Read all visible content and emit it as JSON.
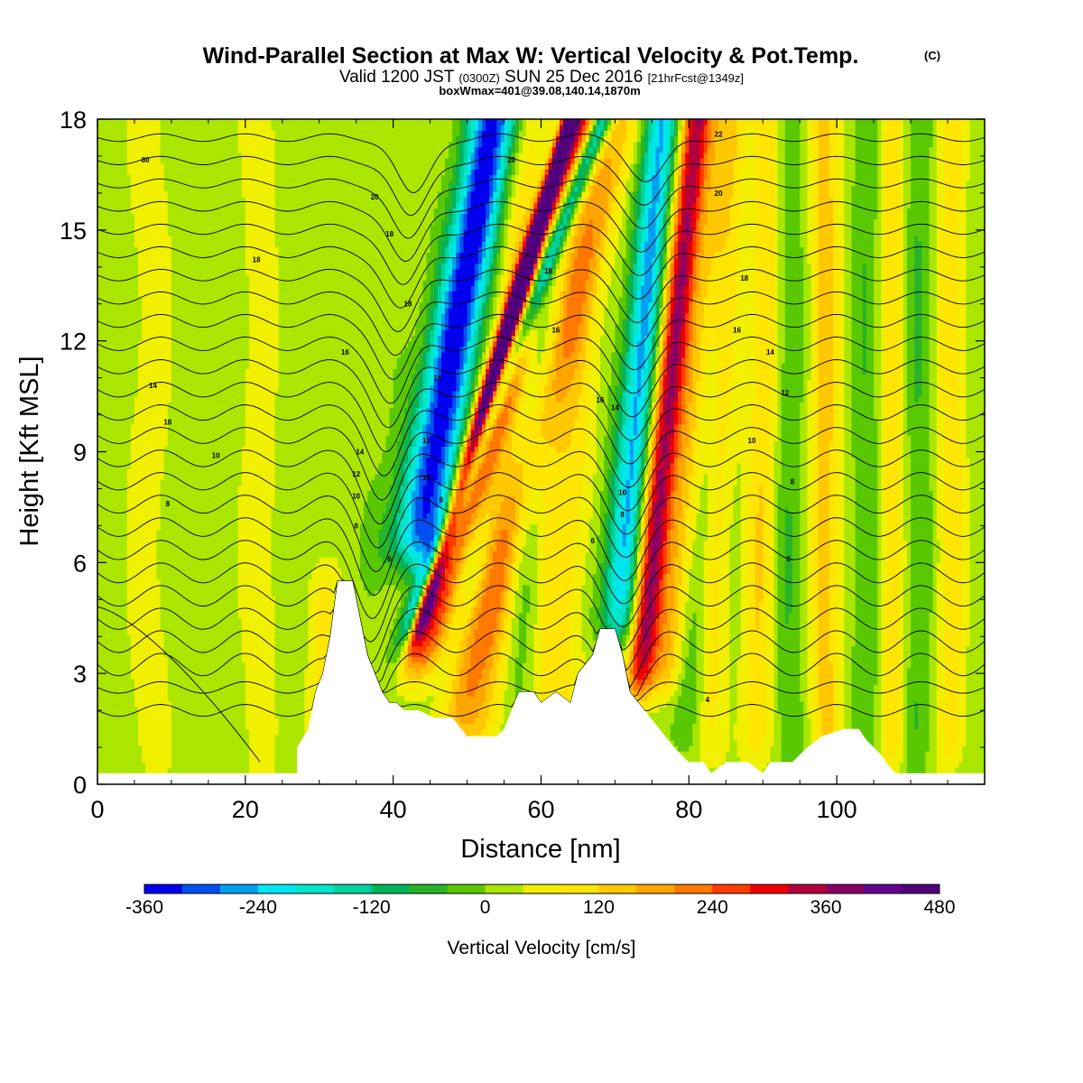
{
  "chart_data": {
    "type": "heatmap",
    "title": "Wind-Parallel Section at Max W: Vertical Velocity & Pot.Temp.",
    "title_mark": "(C)",
    "subtitle_valid": "Valid 1200 JST",
    "subtitle_utc": "(0300Z)",
    "subtitle_date": "SUN 25 Dec 2016",
    "subtitle_fcst": "[21hrFcst@1349z]",
    "subtitle_box": "boxWmax=401@39.08,140.14,1870m",
    "xlabel": "Distance [nm]",
    "ylabel": "Height [Kft MSL]",
    "xlim": [
      0,
      120
    ],
    "ylim": [
      0,
      18
    ],
    "x_ticks": [
      0,
      20,
      40,
      60,
      80,
      100
    ],
    "y_ticks": [
      0,
      3,
      6,
      9,
      12,
      15,
      18
    ],
    "colorbar": {
      "label": "Vertical Velocity [cm/s]",
      "min": -360,
      "max": 480,
      "step": 40,
      "tick_labels": [
        "-360",
        "-240",
        "-120",
        "0",
        "120",
        "240",
        "360",
        "480"
      ],
      "colors": [
        "#0000ee",
        "#0050f0",
        "#00a0f0",
        "#00e6f0",
        "#00e6c8",
        "#00d2a0",
        "#00b45a",
        "#28b428",
        "#5ac800",
        "#aae600",
        "#f0f000",
        "#ffe600",
        "#ffc800",
        "#ffa500",
        "#ff7800",
        "#ff3c00",
        "#f00000",
        "#b4003c",
        "#8c0064",
        "#64008c",
        "#50007a"
      ]
    },
    "terrain": [
      [
        0,
        0.3
      ],
      [
        27,
        0.3
      ],
      [
        27,
        1.0
      ],
      [
        28.5,
        1.5
      ],
      [
        29.5,
        2.5
      ],
      [
        30.5,
        3.0
      ],
      [
        31.5,
        4.0
      ],
      [
        32.5,
        5.5
      ],
      [
        34.5,
        5.5
      ],
      [
        35.5,
        4.5
      ],
      [
        36.5,
        3.5
      ],
      [
        37.5,
        3.0
      ],
      [
        38.5,
        2.5
      ],
      [
        39.5,
        2.2
      ],
      [
        40.5,
        2.2
      ],
      [
        41.5,
        2.0
      ],
      [
        43.5,
        2.0
      ],
      [
        45.5,
        1.8
      ],
      [
        48,
        1.8
      ],
      [
        50,
        1.3
      ],
      [
        54,
        1.3
      ],
      [
        55,
        1.5
      ],
      [
        56,
        2.0
      ],
      [
        57,
        2.5
      ],
      [
        59,
        2.5
      ],
      [
        60,
        2.2
      ],
      [
        62,
        2.5
      ],
      [
        64,
        2.2
      ],
      [
        65,
        3.0
      ],
      [
        67,
        3.5
      ],
      [
        68,
        4.2
      ],
      [
        70,
        4.2
      ],
      [
        71,
        3.5
      ],
      [
        72,
        2.5
      ],
      [
        74,
        2.0
      ],
      [
        76,
        1.5
      ],
      [
        78,
        1.0
      ],
      [
        79,
        0.8
      ],
      [
        80,
        0.6
      ],
      [
        82,
        0.6
      ],
      [
        83,
        0.3
      ],
      [
        85,
        0.6
      ],
      [
        88,
        0.6
      ],
      [
        90,
        0.3
      ],
      [
        91,
        0.6
      ],
      [
        94,
        0.6
      ],
      [
        96,
        1.0
      ],
      [
        98,
        1.3
      ],
      [
        101,
        1.5
      ],
      [
        103,
        1.5
      ],
      [
        104,
        1.2
      ],
      [
        106,
        0.8
      ],
      [
        107,
        0.5
      ],
      [
        108,
        0.3
      ],
      [
        120,
        0.3
      ]
    ],
    "w_features": [
      {
        "x0": 34.0,
        "slope": 1.9,
        "sigma": 1.0,
        "amp": -330,
        "zmin": 4.0
      },
      {
        "x0": 37.0,
        "slope": 1.5,
        "sigma": 0.8,
        "amp": 480,
        "zmin": 4.0
      },
      {
        "x0": 38.8,
        "slope": 1.5,
        "sigma": 1.7,
        "amp": 260,
        "zmin": 3.0
      },
      {
        "x0": 39.0,
        "slope": 0.8,
        "sigma": 2.2,
        "amp": -280,
        "zmin": 6.0
      },
      {
        "x0": 33.0,
        "slope": 1.2,
        "sigma": 2.5,
        "amp": -110,
        "zmin": 6.0
      },
      {
        "x0": 43.0,
        "slope": 1.3,
        "sigma": 2.5,
        "amp": -70,
        "zmin": 5.0
      },
      {
        "x0": 30.5,
        "slope": 0.0,
        "sigma": 1.4,
        "amp": 90,
        "zmin": 0.0,
        "zmax": 6.0
      },
      {
        "x0": 46.0,
        "slope": 1.4,
        "sigma": 2.0,
        "amp": 120,
        "zmin": 1.0
      },
      {
        "x0": 51.5,
        "slope": 0.4,
        "sigma": 2.5,
        "amp": 110,
        "zmin": 1.0
      },
      {
        "x0": 56.0,
        "slope": 0.3,
        "sigma": 1.6,
        "amp": -60,
        "zmin": 1.0
      },
      {
        "x0": 61.0,
        "slope": 0.3,
        "sigma": 2.5,
        "amp": 100,
        "zmin": 1.5
      },
      {
        "x0": 66.0,
        "slope": 0.6,
        "sigma": 2.0,
        "amp": -70,
        "zmin": 4.0
      },
      {
        "x0": 69.0,
        "slope": 0.4,
        "sigma": 1.5,
        "amp": -200,
        "zmin": 4.0
      },
      {
        "x0": 72.0,
        "slope": 0.5,
        "sigma": 1.4,
        "amp": 340,
        "zmin": 2.5
      },
      {
        "x0": 75.5,
        "slope": 0.5,
        "sigma": 1.6,
        "amp": 150,
        "zmin": 2.5
      },
      {
        "x0": 79.0,
        "slope": 0.3,
        "sigma": 1.6,
        "amp": -60,
        "zmin": 1.0
      },
      {
        "x0": 82.5,
        "slope": 0.2,
        "sigma": 1.4,
        "amp": 80,
        "zmin": 0.5
      },
      {
        "x0": 89.0,
        "slope": 0.1,
        "sigma": 1.5,
        "amp": 100,
        "zmin": 0.5
      },
      {
        "x0": 93.5,
        "slope": 0.0,
        "sigma": 1.3,
        "amp": -55,
        "zmin": 0.5
      },
      {
        "x0": 98.5,
        "slope": 0.0,
        "sigma": 1.5,
        "amp": 120,
        "zmin": 0.5
      },
      {
        "x0": 104.0,
        "slope": 0.0,
        "sigma": 1.4,
        "amp": -50,
        "zmin": 0.5
      },
      {
        "x0": 107.5,
        "slope": 0.0,
        "sigma": 1.2,
        "amp": 100,
        "zmin": 0.5
      },
      {
        "x0": 111.0,
        "slope": 0.0,
        "sigma": 1.2,
        "amp": -55,
        "zmin": 0.5
      },
      {
        "x0": 115.5,
        "slope": 0.0,
        "sigma": 1.3,
        "amp": 100,
        "zmin": 0.5
      },
      {
        "x0": 7.0,
        "slope": 0.0,
        "sigma": 2.5,
        "amp": 40,
        "zmin": 0.0
      },
      {
        "x0": 22.0,
        "slope": 0.0,
        "sigma": 2.0,
        "amp": 45,
        "zmin": 0.0
      }
    ],
    "contour_labels": [
      {
        "x": 6.5,
        "y": 16.9,
        "text": "80"
      },
      {
        "x": 21.5,
        "y": 14.2,
        "text": "18"
      },
      {
        "x": 7.5,
        "y": 10.8,
        "text": "14"
      },
      {
        "x": 9.5,
        "y": 9.8,
        "text": "18"
      },
      {
        "x": 16,
        "y": 8.9,
        "text": "10"
      },
      {
        "x": 9.5,
        "y": 7.6,
        "text": "8"
      },
      {
        "x": 37.5,
        "y": 15.9,
        "text": "20"
      },
      {
        "x": 39.5,
        "y": 14.9,
        "text": "18"
      },
      {
        "x": 42,
        "y": 13.0,
        "text": "18"
      },
      {
        "x": 33.5,
        "y": 11.7,
        "text": "16"
      },
      {
        "x": 46,
        "y": 11.0,
        "text": "14"
      },
      {
        "x": 35.5,
        "y": 9.0,
        "text": "14"
      },
      {
        "x": 44.5,
        "y": 9.3,
        "text": "12"
      },
      {
        "x": 35,
        "y": 8.4,
        "text": "12"
      },
      {
        "x": 44.5,
        "y": 8.3,
        "text": "10"
      },
      {
        "x": 35,
        "y": 7.8,
        "text": "10"
      },
      {
        "x": 46.5,
        "y": 7.7,
        "text": "8"
      },
      {
        "x": 35,
        "y": 7.0,
        "text": "8"
      },
      {
        "x": 39.5,
        "y": 6.1,
        "text": "6"
      },
      {
        "x": 56,
        "y": 16.9,
        "text": "20"
      },
      {
        "x": 61,
        "y": 13.9,
        "text": "18"
      },
      {
        "x": 62,
        "y": 12.3,
        "text": "16"
      },
      {
        "x": 68,
        "y": 10.4,
        "text": "16"
      },
      {
        "x": 70,
        "y": 10.2,
        "text": "14"
      },
      {
        "x": 71,
        "y": 7.9,
        "text": "10"
      },
      {
        "x": 71,
        "y": 7.3,
        "text": "8"
      },
      {
        "x": 67,
        "y": 6.6,
        "text": "6"
      },
      {
        "x": 84,
        "y": 17.6,
        "text": "22"
      },
      {
        "x": 84,
        "y": 16.0,
        "text": "20"
      },
      {
        "x": 87.5,
        "y": 13.7,
        "text": "18"
      },
      {
        "x": 86.5,
        "y": 12.3,
        "text": "16"
      },
      {
        "x": 91,
        "y": 11.7,
        "text": "14"
      },
      {
        "x": 93,
        "y": 10.6,
        "text": "12"
      },
      {
        "x": 88.5,
        "y": 9.3,
        "text": "10"
      },
      {
        "x": 94,
        "y": 8.2,
        "text": "8"
      },
      {
        "x": 93.5,
        "y": 6.1,
        "text": "6"
      },
      {
        "x": 82.5,
        "y": 2.3,
        "text": "4"
      }
    ]
  }
}
